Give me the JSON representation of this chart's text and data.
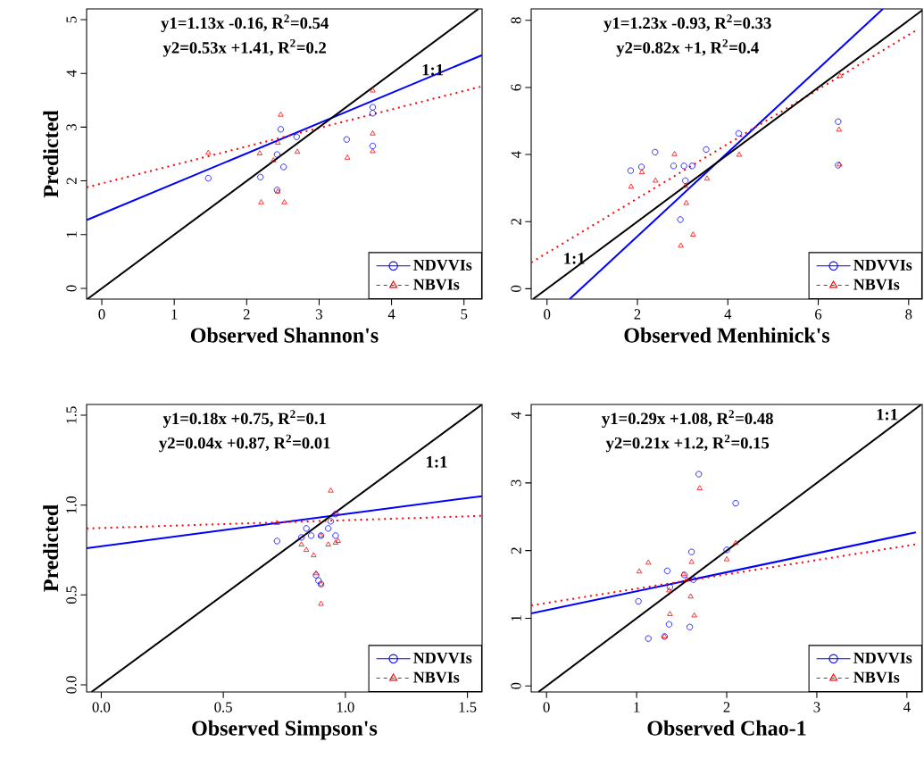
{
  "chart_data": [
    {
      "type": "scatter",
      "xlabel": "Observed Shannon's",
      "ylabel": "Predicted",
      "xlim": [
        -0.21,
        5.25
      ],
      "ylim": [
        -0.2,
        5.2
      ],
      "xticks": [
        0,
        1,
        2,
        3,
        4,
        5
      ],
      "yticks": [
        0,
        1,
        2,
        3,
        4,
        5
      ],
      "legend": "bottom right",
      "series": [
        {
          "name": "NDVVIs",
          "color": "#0000ff",
          "marker": "circle",
          "line_style": "solid",
          "x": [
            1.47,
            2.19,
            2.47,
            2.42,
            2.51,
            2.42,
            2.69,
            3.38,
            3.74,
            3.74,
            3.74
          ],
          "values": [
            2.05,
            2.07,
            2.96,
            2.49,
            2.26,
            1.83,
            2.82,
            2.77,
            3.37,
            3.26,
            2.65
          ]
        },
        {
          "name": "NBVIs",
          "color": "#ff0000",
          "marker": "triangle",
          "line_style": "dashed",
          "x": [
            1.47,
            2.18,
            2.2,
            2.47,
            2.43,
            2.37,
            2.43,
            2.52,
            2.7,
            3.39,
            3.74,
            3.74,
            3.74
          ],
          "values": [
            2.52,
            2.51,
            1.6,
            3.23,
            2.71,
            2.38,
            1.8,
            1.6,
            2.54,
            2.43,
            3.68,
            2.88,
            2.55
          ]
        },
        {
          "type": "line",
          "color": "#0000ff",
          "line_style": "solid",
          "x": [
            -0.21,
            5.25
          ],
          "values": [
            1.27,
            4.34
          ]
        },
        {
          "type": "line",
          "color": "#ff0000",
          "line_style": "dotted",
          "x": [
            -0.21,
            5.25
          ],
          "values": [
            1.88,
            3.76
          ]
        },
        {
          "type": "line",
          "color": "#000000",
          "line_style": "solid",
          "x": [
            -0.2,
            5.2
          ],
          "values": [
            -0.2,
            5.2
          ]
        }
      ],
      "annotations": [
        "y1=1.13x -0.16, R$^{2}$=0.54",
        "y2=0.53x +1.41, R$^{2}$=0.2",
        "1:1"
      ]
    },
    {
      "type": "scatter",
      "xlabel": "Observed Menhinick's",
      "xlim": [
        -0.35,
        8.3
      ],
      "ylim": [
        -0.31,
        8.34
      ],
      "xticks": [
        0,
        2,
        4,
        6,
        8
      ],
      "yticks": [
        0,
        2,
        4,
        6,
        8
      ],
      "legend": "bottom right",
      "series": [
        {
          "name": "NDVVIs",
          "color": "#0000ff",
          "marker": "circle",
          "line_style": "solid",
          "x": [
            1.85,
            2.09,
            2.39,
            2.8,
            3.03,
            3.21,
            3.06,
            2.95,
            3.52,
            4.24,
            6.44,
            6.44
          ],
          "values": [
            3.52,
            3.63,
            4.07,
            3.66,
            3.66,
            3.66,
            3.22,
            2.06,
            4.15,
            4.63,
            4.98,
            3.68
          ]
        },
        {
          "name": "NBVIs",
          "color": "#ff0000",
          "marker": "triangle",
          "line_style": "dashed",
          "x": [
            1.86,
            2.1,
            2.4,
            2.82,
            3.06,
            3.08,
            3.23,
            2.96,
            3.54,
            4.25,
            6.48,
            6.46,
            6.47
          ],
          "values": [
            3.04,
            3.47,
            3.22,
            4.01,
            3.06,
            2.55,
            1.61,
            1.28,
            3.28,
            3.99,
            6.34,
            4.74,
            3.7
          ]
        },
        {
          "type": "line",
          "color": "#0000ff",
          "line_style": "solid",
          "x": [
            0.5,
            7.43
          ],
          "values": [
            -0.31,
            8.34
          ]
        },
        {
          "type": "line",
          "color": "#ff0000",
          "line_style": "dotted",
          "x": [
            -0.35,
            8.15
          ],
          "values": [
            0.78,
            7.69
          ]
        },
        {
          "type": "line",
          "color": "#000000",
          "line_style": "solid",
          "x": [
            -0.31,
            8.3
          ],
          "values": [
            -0.31,
            8.3
          ]
        }
      ],
      "annotations": [
        "y1=1.23x -0.93, R$^{2}$=0.33",
        "y2=0.82x +1, R$^{2}$=0.4",
        "1:1"
      ]
    },
    {
      "type": "scatter",
      "xlabel": "Observed Simpson's",
      "ylabel": "Predicted",
      "xlim": [
        -0.06,
        1.56
      ],
      "ylim": [
        -0.04,
        1.56
      ],
      "xticks": [
        {
          "value": 0,
          "label": "0.0"
        },
        {
          "value": 0.5,
          "label": "0.5"
        },
        {
          "value": 1,
          "label": "1.0"
        },
        {
          "value": 1.5,
          "label": "1.5"
        }
      ],
      "yticks": [
        {
          "value": 0,
          "label": "0.0"
        },
        {
          "value": 0.5,
          "label": "0.5"
        },
        {
          "value": 1,
          "label": "1.0"
        },
        {
          "value": 1.5,
          "label": "1.5"
        }
      ],
      "legend": "bottom right",
      "series": [
        {
          "name": "NDVVIs",
          "color": "#0000ff",
          "marker": "circle",
          "line_style": "solid",
          "x": [
            0.72,
            0.84,
            0.86,
            0.82,
            0.9,
            0.93,
            0.94,
            0.96,
            0.96,
            0.88,
            0.89,
            0.9
          ],
          "values": [
            0.8,
            0.87,
            0.83,
            0.82,
            0.83,
            0.87,
            0.91,
            0.83,
            0.95,
            0.61,
            0.58,
            0.56
          ]
        },
        {
          "name": "NBVIs",
          "color": "#ff0000",
          "marker": "triangle",
          "line_style": "dashed",
          "x": [
            0.72,
            0.94,
            0.96,
            0.9,
            0.82,
            0.84,
            0.87,
            0.88,
            0.9,
            0.9,
            0.93,
            0.96,
            0.97
          ],
          "values": [
            0.9,
            1.08,
            0.95,
            0.83,
            0.78,
            0.75,
            0.72,
            0.62,
            0.56,
            0.45,
            0.78,
            0.79,
            0.8
          ]
        },
        {
          "type": "line",
          "color": "#0000ff",
          "line_style": "solid",
          "x": [
            -0.06,
            1.56
          ],
          "values": [
            0.76,
            1.05
          ]
        },
        {
          "type": "line",
          "color": "#ff0000",
          "line_style": "dotted",
          "x": [
            -0.06,
            1.56
          ],
          "values": [
            0.87,
            0.94
          ]
        },
        {
          "type": "line",
          "color": "#000000",
          "line_style": "solid",
          "x": [
            -0.04,
            1.56
          ],
          "values": [
            -0.04,
            1.56
          ]
        }
      ],
      "annotations": [
        "y1=0.18x +0.75, R$^{2}$=0.1",
        "y2=0.04x +0.87, R$^{2}$=0.01",
        "1:1"
      ]
    },
    {
      "type": "scatter",
      "xlabel": "Observed Chao-1",
      "xlim": [
        -0.17,
        4.17
      ],
      "ylim": [
        -0.09,
        4.16
      ],
      "xticks": [
        0,
        1,
        2,
        3,
        4
      ],
      "yticks": [
        0,
        1,
        2,
        3,
        4
      ],
      "legend": "bottom right",
      "series": [
        {
          "name": "NDVVIs",
          "color": "#0000ff",
          "marker": "circle",
          "line_style": "solid",
          "x": [
            1.69,
            2.1,
            1.61,
            2.0,
            1.34,
            1.02,
            1.36,
            1.13,
            1.59,
            1.63,
            1.37,
            1.31,
            1.53
          ],
          "values": [
            3.13,
            2.7,
            1.98,
            2.01,
            1.7,
            1.25,
            0.91,
            0.7,
            0.87,
            1.57,
            1.46,
            0.73,
            1.64
          ]
        },
        {
          "name": "NBVIs",
          "color": "#ff0000",
          "marker": "triangle",
          "line_style": "dashed",
          "x": [
            1.7,
            2.1,
            2.0,
            1.61,
            1.13,
            1.03,
            1.52,
            1.56,
            1.36,
            1.6,
            1.37,
            1.64,
            1.31
          ],
          "values": [
            2.92,
            2.11,
            1.87,
            1.83,
            1.82,
            1.69,
            1.65,
            1.57,
            1.41,
            1.32,
            1.06,
            1.04,
            0.73
          ]
        },
        {
          "type": "line",
          "color": "#0000ff",
          "line_style": "solid",
          "x": [
            -0.17,
            4.1
          ],
          "values": [
            1.07,
            2.27
          ]
        },
        {
          "type": "line",
          "color": "#ff0000",
          "line_style": "dotted",
          "x": [
            -0.17,
            4.09
          ],
          "values": [
            1.19,
            2.09
          ]
        },
        {
          "type": "line",
          "color": "#000000",
          "line_style": "solid",
          "x": [
            -0.09,
            4.16
          ],
          "values": [
            -0.09,
            4.16
          ]
        }
      ],
      "annotations": [
        "y1=0.29x +1.08, R$^{2}$=0.48",
        "y2=0.21x +1.2, R$^{2}$=0.15",
        "1:1"
      ]
    }
  ]
}
